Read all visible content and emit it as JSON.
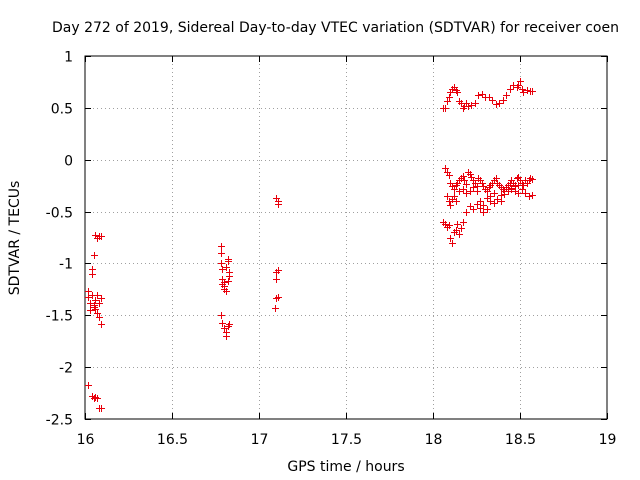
{
  "chart_data": {
    "type": "scatter",
    "title": "Day 272 of 2019, Sidereal Day-to-day VTEC variation (SDTVAR) for receiver coen",
    "xlabel": "GPS time / hours",
    "ylabel": "SDTVAR / TECUs",
    "xlim": [
      16,
      19
    ],
    "ylim": [
      -2.5,
      1
    ],
    "xticks": [
      16,
      16.5,
      17,
      17.5,
      18,
      18.5,
      19
    ],
    "xtick_labels": [
      "16",
      "16.5",
      "17",
      "17.5",
      "18",
      "18.5",
      "19"
    ],
    "yticks": [
      1,
      0.5,
      0,
      -0.5,
      -1,
      -1.5,
      -2,
      -2.5
    ],
    "ytick_labels": [
      "1",
      "0.5",
      "0",
      "-0.5",
      "-1",
      "-1.5",
      "-2",
      "-2.5"
    ],
    "grid": true,
    "marker": "+",
    "color": "#e8000b",
    "series": [
      {
        "name": "SDTVAR",
        "points": [
          [
            16.02,
            -1.27
          ],
          [
            16.02,
            -1.32
          ],
          [
            16.03,
            -1.38
          ],
          [
            16.03,
            -1.45
          ],
          [
            16.04,
            -1.1
          ],
          [
            16.04,
            -1.05
          ],
          [
            16.05,
            -0.92
          ],
          [
            16.05,
            -1.4
          ],
          [
            16.06,
            -1.44
          ],
          [
            16.06,
            -1.35
          ],
          [
            16.07,
            -1.3
          ],
          [
            16.07,
            -1.48
          ],
          [
            16.08,
            -1.52
          ],
          [
            16.08,
            -1.38
          ],
          [
            16.09,
            -1.58
          ],
          [
            16.09,
            -1.33
          ],
          [
            16.06,
            -0.73
          ],
          [
            16.07,
            -0.75
          ],
          [
            16.08,
            -0.74
          ],
          [
            16.09,
            -0.74
          ],
          [
            16.02,
            -2.17
          ],
          [
            16.04,
            -2.28
          ],
          [
            16.05,
            -2.3
          ],
          [
            16.06,
            -2.29
          ],
          [
            16.07,
            -2.3
          ],
          [
            16.08,
            -2.39
          ],
          [
            16.09,
            -2.39
          ],
          [
            16.04,
            -1.3
          ],
          [
            16.05,
            -1.42
          ],
          [
            16.78,
            -0.83
          ],
          [
            16.78,
            -0.9
          ],
          [
            16.78,
            -1.0
          ],
          [
            16.79,
            -1.05
          ],
          [
            16.79,
            -1.15
          ],
          [
            16.8,
            -1.18
          ],
          [
            16.8,
            -1.22
          ],
          [
            16.81,
            -1.27
          ],
          [
            16.81,
            -1.03
          ],
          [
            16.82,
            -0.98
          ],
          [
            16.82,
            -0.96
          ],
          [
            16.83,
            -1.08
          ],
          [
            16.79,
            -1.2
          ],
          [
            16.8,
            -1.25
          ],
          [
            16.82,
            -1.17
          ],
          [
            16.83,
            -1.12
          ],
          [
            16.78,
            -1.5
          ],
          [
            16.79,
            -1.57
          ],
          [
            16.8,
            -1.62
          ],
          [
            16.81,
            -1.66
          ],
          [
            16.81,
            -1.7
          ],
          [
            16.82,
            -1.6
          ],
          [
            16.83,
            -1.58
          ],
          [
            17.1,
            -0.37
          ],
          [
            17.11,
            -0.4
          ],
          [
            17.11,
            -0.43
          ],
          [
            17.1,
            -1.08
          ],
          [
            17.11,
            -1.06
          ],
          [
            17.1,
            -1.15
          ],
          [
            17.11,
            -1.32
          ],
          [
            17.1,
            -1.33
          ],
          [
            17.09,
            -1.43
          ],
          [
            18.06,
            0.5
          ],
          [
            18.07,
            0.5
          ],
          [
            18.08,
            0.57
          ],
          [
            18.09,
            0.6
          ],
          [
            18.1,
            0.65
          ],
          [
            18.11,
            0.68
          ],
          [
            18.12,
            0.7
          ],
          [
            18.13,
            0.67
          ],
          [
            18.14,
            0.65
          ],
          [
            18.15,
            0.57
          ],
          [
            18.16,
            0.55
          ],
          [
            18.17,
            0.5
          ],
          [
            18.18,
            0.52
          ],
          [
            18.19,
            0.55
          ],
          [
            18.2,
            0.52
          ],
          [
            18.22,
            0.53
          ],
          [
            18.24,
            0.55
          ],
          [
            18.26,
            0.62
          ],
          [
            18.28,
            0.63
          ],
          [
            18.3,
            0.6
          ],
          [
            18.32,
            0.6
          ],
          [
            18.34,
            0.58
          ],
          [
            18.36,
            0.54
          ],
          [
            18.38,
            0.55
          ],
          [
            18.4,
            0.58
          ],
          [
            18.42,
            0.62
          ],
          [
            18.44,
            0.68
          ],
          [
            18.46,
            0.72
          ],
          [
            18.48,
            0.7
          ],
          [
            18.49,
            0.72
          ],
          [
            18.5,
            0.76
          ],
          [
            18.51,
            0.68
          ],
          [
            18.52,
            0.65
          ],
          [
            18.54,
            0.67
          ],
          [
            18.56,
            0.66
          ],
          [
            18.57,
            0.66
          ],
          [
            18.07,
            -0.08
          ],
          [
            18.08,
            -0.12
          ],
          [
            18.09,
            -0.15
          ],
          [
            18.1,
            -0.22
          ],
          [
            18.11,
            -0.25
          ],
          [
            18.12,
            -0.28
          ],
          [
            18.13,
            -0.24
          ],
          [
            18.14,
            -0.22
          ],
          [
            18.15,
            -0.2
          ],
          [
            18.16,
            -0.18
          ],
          [
            18.17,
            -0.16
          ],
          [
            18.18,
            -0.2
          ],
          [
            18.19,
            -0.23
          ],
          [
            18.2,
            -0.12
          ],
          [
            18.21,
            -0.14
          ],
          [
            18.22,
            -0.17
          ],
          [
            18.23,
            -0.2
          ],
          [
            18.24,
            -0.22
          ],
          [
            18.25,
            -0.25
          ],
          [
            18.26,
            -0.18
          ],
          [
            18.27,
            -0.2
          ],
          [
            18.28,
            -0.22
          ],
          [
            18.29,
            -0.25
          ],
          [
            18.3,
            -0.28
          ],
          [
            18.31,
            -0.3
          ],
          [
            18.32,
            -0.26
          ],
          [
            18.33,
            -0.24
          ],
          [
            18.34,
            -0.22
          ],
          [
            18.35,
            -0.2
          ],
          [
            18.36,
            -0.18
          ],
          [
            18.37,
            -0.22
          ],
          [
            18.38,
            -0.24
          ],
          [
            18.39,
            -0.26
          ],
          [
            18.4,
            -0.28
          ],
          [
            18.41,
            -0.3
          ],
          [
            18.42,
            -0.26
          ],
          [
            18.43,
            -0.24
          ],
          [
            18.44,
            -0.22
          ],
          [
            18.45,
            -0.2
          ],
          [
            18.46,
            -0.22
          ],
          [
            18.47,
            -0.24
          ],
          [
            18.48,
            -0.18
          ],
          [
            18.49,
            -0.17
          ],
          [
            18.5,
            -0.2
          ],
          [
            18.51,
            -0.22
          ],
          [
            18.52,
            -0.24
          ],
          [
            18.53,
            -0.2
          ],
          [
            18.54,
            -0.22
          ],
          [
            18.55,
            -0.2
          ],
          [
            18.56,
            -0.18
          ],
          [
            18.57,
            -0.19
          ],
          [
            18.08,
            -0.35
          ],
          [
            18.09,
            -0.4
          ],
          [
            18.1,
            -0.44
          ],
          [
            18.11,
            -0.38
          ],
          [
            18.12,
            -0.35
          ],
          [
            18.13,
            -0.4
          ],
          [
            18.15,
            -0.3
          ],
          [
            18.17,
            -0.28
          ],
          [
            18.19,
            -0.32
          ],
          [
            18.21,
            -0.3
          ],
          [
            18.23,
            -0.26
          ],
          [
            18.25,
            -0.3
          ],
          [
            18.27,
            -0.4
          ],
          [
            18.29,
            -0.44
          ],
          [
            18.31,
            -0.37
          ],
          [
            18.33,
            -0.35
          ],
          [
            18.35,
            -0.32
          ],
          [
            18.37,
            -0.38
          ],
          [
            18.39,
            -0.4
          ],
          [
            18.41,
            -0.33
          ],
          [
            18.43,
            -0.3
          ],
          [
            18.45,
            -0.28
          ],
          [
            18.47,
            -0.3
          ],
          [
            18.49,
            -0.32
          ],
          [
            18.51,
            -0.28
          ],
          [
            18.53,
            -0.32
          ],
          [
            18.55,
            -0.35
          ],
          [
            18.57,
            -0.34
          ],
          [
            18.06,
            -0.6
          ],
          [
            18.07,
            -0.62
          ],
          [
            18.08,
            -0.65
          ],
          [
            18.09,
            -0.63
          ],
          [
            18.1,
            -0.75
          ],
          [
            18.11,
            -0.8
          ],
          [
            18.12,
            -0.7
          ],
          [
            18.13,
            -0.68
          ],
          [
            18.14,
            -0.62
          ],
          [
            18.15,
            -0.72
          ],
          [
            18.16,
            -0.66
          ],
          [
            18.17,
            -0.6
          ],
          [
            18.19,
            -0.5
          ],
          [
            18.21,
            -0.45
          ],
          [
            18.23,
            -0.48
          ],
          [
            18.25,
            -0.43
          ],
          [
            18.27,
            -0.47
          ],
          [
            18.29,
            -0.5
          ],
          [
            18.31,
            -0.48
          ],
          [
            18.33,
            -0.4
          ],
          [
            18.35,
            -0.42
          ],
          [
            18.37,
            -0.38
          ],
          [
            18.39,
            -0.34
          ],
          [
            18.41,
            -0.3
          ],
          [
            18.43,
            -0.28
          ],
          [
            18.45,
            -0.27
          ],
          [
            18.47,
            -0.25
          ],
          [
            18.49,
            -0.24
          ]
        ]
      }
    ]
  }
}
